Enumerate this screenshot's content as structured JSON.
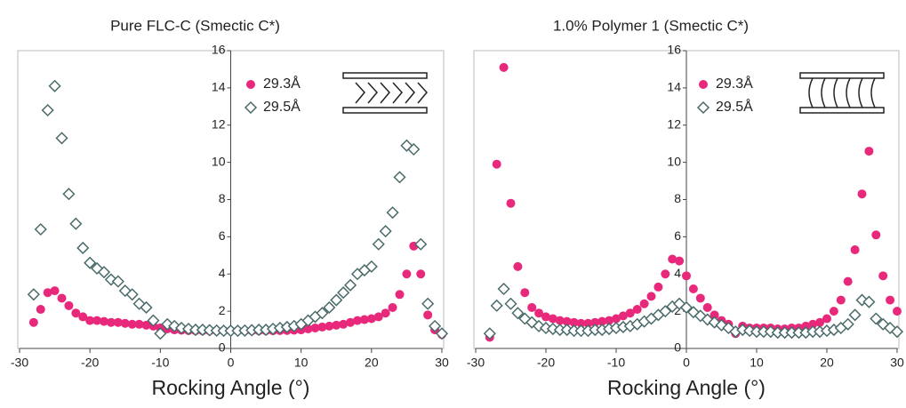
{
  "chart_data": [
    {
      "type": "scatter",
      "title": "Pure FLC-C (Smectic C*)",
      "x_label": "Rocking Angle (°)",
      "x": [
        -28,
        -27,
        -26,
        -25,
        -24,
        -23,
        -22,
        -21,
        -20,
        -19,
        -18,
        -17,
        -16,
        -15,
        -14,
        -13,
        -12,
        -11,
        -10,
        -9,
        -8,
        -7,
        -6,
        -5,
        -4,
        -3,
        -2,
        -1,
        0,
        1,
        2,
        3,
        4,
        5,
        6,
        7,
        8,
        9,
        10,
        11,
        12,
        13,
        14,
        15,
        16,
        17,
        18,
        19,
        20,
        21,
        22,
        23,
        24,
        25,
        26,
        27,
        28,
        29,
        30
      ],
      "series": [
        {
          "name": "29.3Å",
          "color": "#e8287a",
          "marker": "circle",
          "values": [
            1.4,
            2.1,
            3.0,
            3.1,
            2.7,
            2.3,
            1.9,
            1.7,
            1.5,
            1.5,
            1.45,
            1.4,
            1.4,
            1.35,
            1.3,
            1.3,
            1.25,
            1.2,
            1.1,
            1.05,
            1.0,
            0.98,
            0.96,
            0.95,
            0.95,
            0.95,
            0.95,
            0.95,
            0.95,
            0.95,
            0.95,
            0.95,
            0.95,
            0.95,
            0.95,
            0.96,
            0.97,
            0.98,
            1.0,
            1.05,
            1.1,
            1.15,
            1.2,
            1.25,
            1.3,
            1.4,
            1.5,
            1.55,
            1.6,
            1.7,
            1.9,
            2.2,
            2.9,
            4.0,
            5.5,
            4.0,
            1.8,
            1.0,
            0.75
          ]
        },
        {
          "name": "29.5Å",
          "color": "#4a6a6a",
          "marker": "diamond",
          "values": [
            2.9,
            6.4,
            12.8,
            14.1,
            11.3,
            8.3,
            6.7,
            5.4,
            4.6,
            4.3,
            4.1,
            3.7,
            3.6,
            3.1,
            2.9,
            2.4,
            2.2,
            1.5,
            0.8,
            1.3,
            1.2,
            1.1,
            1.05,
            1.0,
            1.0,
            0.98,
            0.96,
            0.95,
            0.95,
            0.95,
            0.96,
            0.98,
            1.0,
            1.0,
            1.05,
            1.1,
            1.15,
            1.2,
            1.3,
            1.5,
            1.7,
            1.9,
            2.2,
            2.6,
            3.0,
            3.4,
            4.0,
            4.2,
            4.4,
            5.6,
            6.3,
            7.3,
            9.2,
            10.9,
            10.7,
            5.6,
            2.4,
            1.2,
            0.8
          ]
        }
      ],
      "xlim": [
        -30,
        30
      ],
      "ylim": [
        0,
        16
      ],
      "xticks": [
        -30,
        -20,
        -10,
        0,
        10,
        20,
        30
      ],
      "yticks": [
        0,
        2,
        4,
        6,
        8,
        10,
        12,
        14,
        16
      ]
    },
    {
      "type": "scatter",
      "title": "1.0% Polymer 1 (Smectic C*)",
      "x_label": "Rocking Angle (°)",
      "x": [
        -28,
        -27,
        -26,
        -25,
        -24,
        -23,
        -22,
        -21,
        -20,
        -19,
        -18,
        -17,
        -16,
        -15,
        -14,
        -13,
        -12,
        -11,
        -10,
        -9,
        -8,
        -7,
        -6,
        -5,
        -4,
        -3,
        -2,
        -1,
        0,
        1,
        2,
        3,
        4,
        5,
        6,
        7,
        8,
        9,
        10,
        11,
        12,
        13,
        14,
        15,
        16,
        17,
        18,
        19,
        20,
        21,
        22,
        23,
        24,
        25,
        26,
        27,
        28,
        29,
        30
      ],
      "series": [
        {
          "name": "29.3Å",
          "color": "#e8287a",
          "marker": "circle",
          "values": [
            0.6,
            9.9,
            15.1,
            7.8,
            4.4,
            3.0,
            2.2,
            1.9,
            1.7,
            1.6,
            1.5,
            1.45,
            1.4,
            1.35,
            1.35,
            1.4,
            1.45,
            1.5,
            1.6,
            1.75,
            1.9,
            2.1,
            2.4,
            2.8,
            3.3,
            4.0,
            4.8,
            4.7,
            3.9,
            3.2,
            2.7,
            2.2,
            1.8,
            1.5,
            1.3,
            0.8,
            1.2,
            1.1,
            1.1,
            1.1,
            1.1,
            1.05,
            1.05,
            1.1,
            1.1,
            1.2,
            1.3,
            1.4,
            1.6,
            2.0,
            2.6,
            3.6,
            5.3,
            8.3,
            10.6,
            6.1,
            3.9,
            2.6,
            2.0
          ]
        },
        {
          "name": "29.5Å",
          "color": "#4a6a6a",
          "marker": "diamond",
          "values": [
            0.8,
            2.3,
            3.2,
            2.4,
            1.9,
            1.6,
            1.4,
            1.2,
            1.1,
            1.05,
            1.0,
            1.0,
            0.95,
            0.95,
            0.95,
            1.0,
            1.0,
            1.05,
            1.1,
            1.15,
            1.2,
            1.3,
            1.45,
            1.6,
            1.8,
            2.0,
            2.25,
            2.4,
            2.2,
            1.95,
            1.75,
            1.55,
            1.4,
            1.25,
            1.1,
            0.9,
            1.0,
            0.95,
            0.9,
            0.9,
            0.9,
            0.85,
            0.85,
            0.85,
            0.85,
            0.85,
            0.9,
            0.9,
            0.95,
            1.0,
            1.1,
            1.3,
            1.8,
            2.6,
            2.5,
            1.6,
            1.3,
            1.1,
            0.9
          ]
        }
      ],
      "xlim": [
        -30,
        30
      ],
      "ylim": [
        0,
        16
      ],
      "xticks": [
        -30,
        -20,
        -10,
        0,
        10,
        20,
        30
      ],
      "yticks": [
        0,
        2,
        4,
        6,
        8,
        10,
        12,
        14,
        16
      ]
    }
  ]
}
